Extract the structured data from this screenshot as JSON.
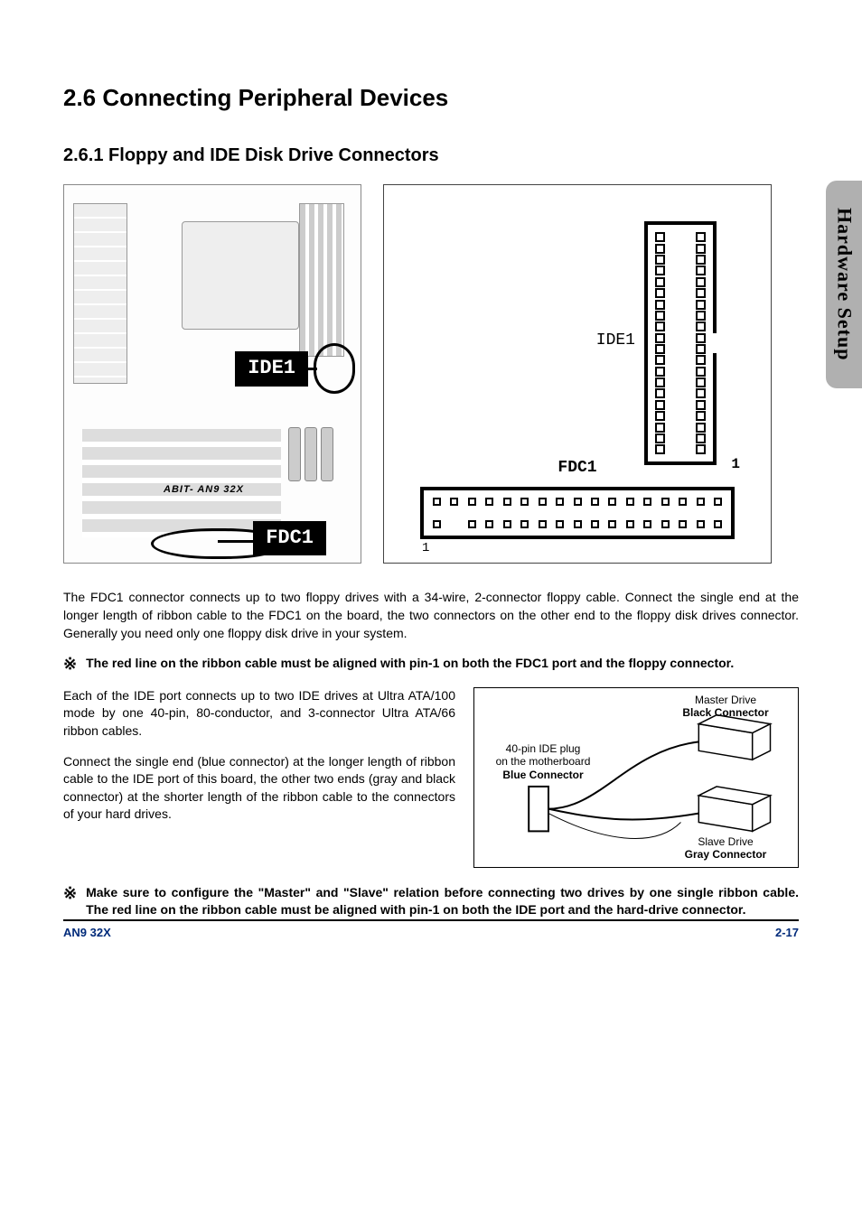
{
  "sideTab": "Hardware Setup",
  "h1": "2.6 Connecting Peripheral Devices",
  "h2": "2.6.1 Floppy and IDE Disk Drive Connectors",
  "mobo": {
    "ide1_label": "IDE1",
    "fdc1_label": "FDC1",
    "brand": "ABIT- AN9 32X"
  },
  "connector": {
    "ide_label": "IDE1",
    "ide_pin1": "1",
    "ide_rows": 20,
    "fdc_label": "FDC1",
    "fdc_pin1": "1",
    "fdc_cols": 17
  },
  "para1": "The FDC1 connector connects up to two floppy drives with a 34-wire, 2-connector floppy cable. Connect the single end at the longer length of ribbon cable to the FDC1 on the board, the two connectors on the other end to the floppy disk drives connector. Generally you need only one floppy disk drive in your system.",
  "note1_sym": "※",
  "note1": "The red line on the ribbon cable must be aligned with pin-1 on both the FDC1 port and the floppy connector.",
  "para2": "Each of the IDE port connects up to two IDE drives at Ultra ATA/100 mode by one 40-pin, 80-conductor, and 3-connector Ultra ATA/66 ribbon cables.",
  "para3": "Connect the single end (blue connector) at the longer length of ribbon cable to the IDE port of this board, the other two ends (gray and black connector) at the shorter length of the ribbon cable to the connectors of your hard drives.",
  "cable": {
    "master_line1": "Master Drive",
    "master_line2": "Black Connector",
    "mb_line1": "40-pin IDE plug",
    "mb_line2": "on the motherboard",
    "mb_line3": "Blue Connector",
    "slave_line1": "Slave Drive",
    "slave_line2": "Gray Connector"
  },
  "note2_sym": "※",
  "note2": "Make sure to configure the \"Master\" and \"Slave\" relation before connecting two drives by one single ribbon cable. The red line on the ribbon cable must be aligned with pin-1 on both the IDE port and the hard-drive connector.",
  "footer_left": "AN9 32X",
  "footer_right": "2-17",
  "colors": {
    "footer": "#002a7a",
    "tab_bg": "#b0b0b0"
  }
}
